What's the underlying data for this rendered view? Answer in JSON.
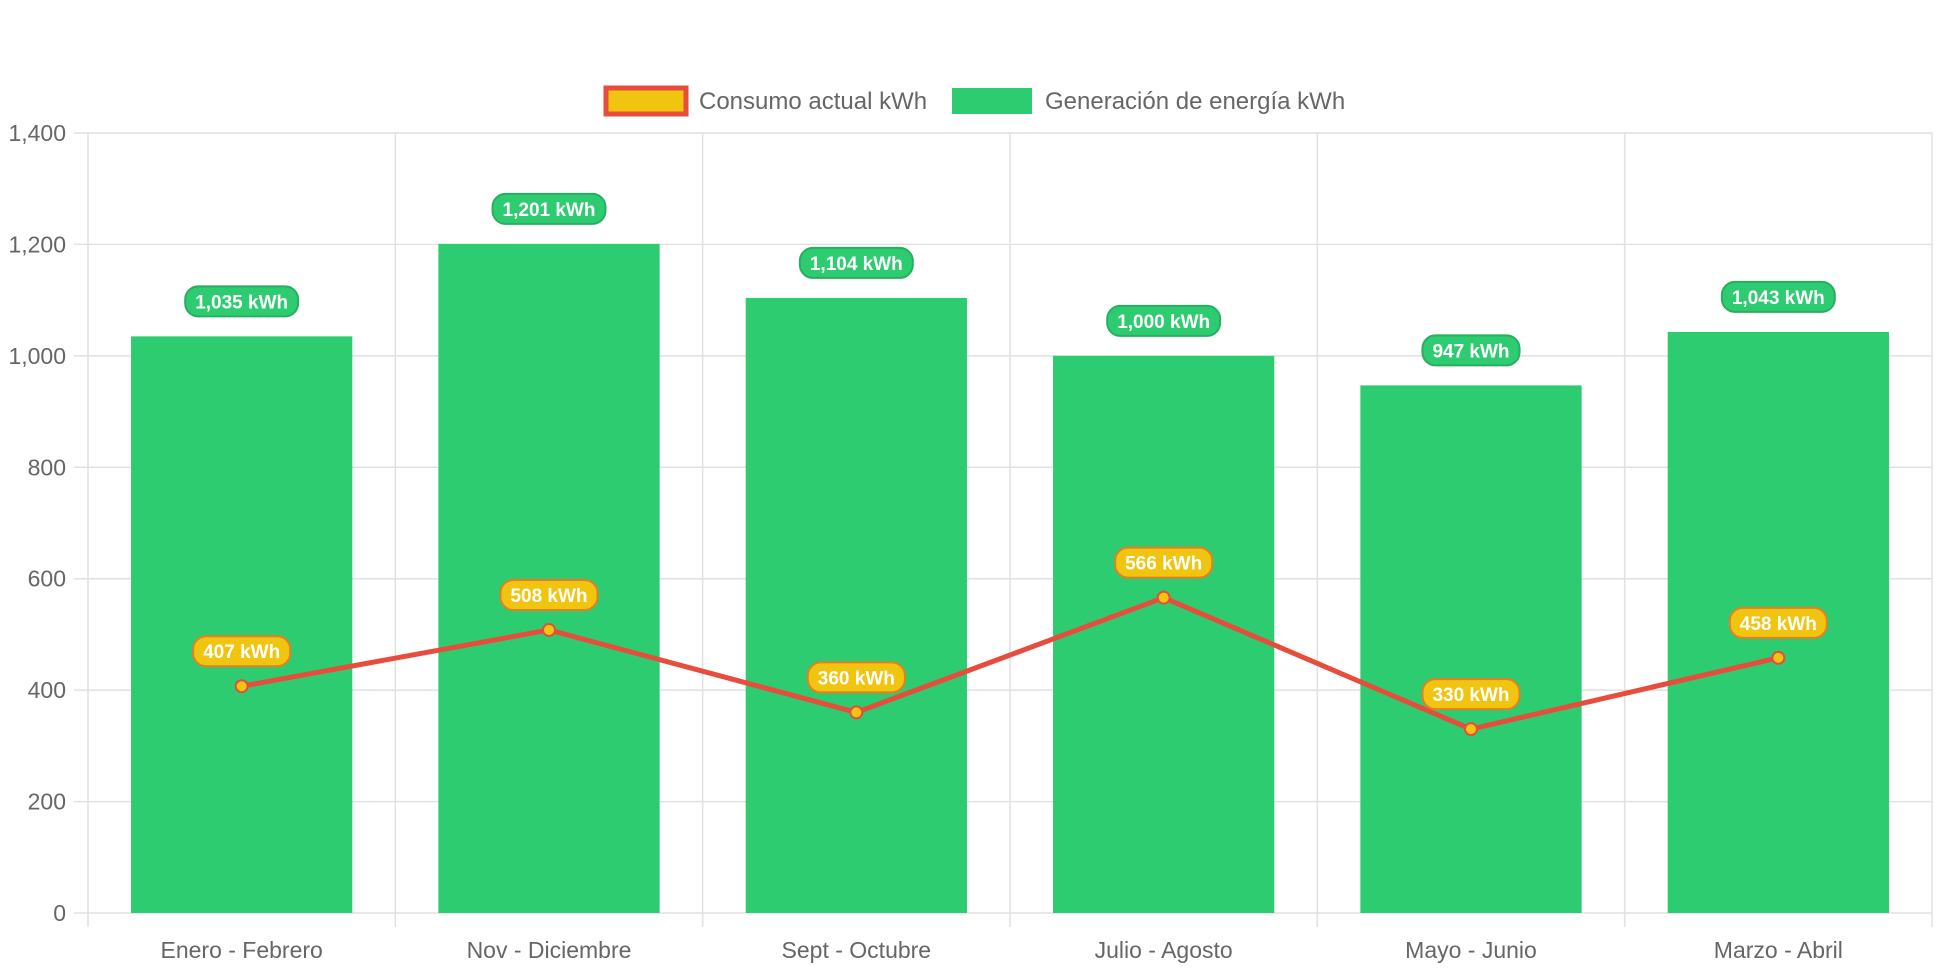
{
  "chart_data": {
    "type": "bar",
    "title": "",
    "xlabel": "",
    "ylabel": "",
    "categories": [
      "Enero - Febrero",
      "Nov - Diciembre",
      "Sept - Octubre",
      "Julio - Agosto",
      "Mayo - Junio",
      "Marzo - Abril"
    ],
    "ylim": [
      0,
      1400
    ],
    "y_ticks": [
      0,
      200,
      400,
      600,
      800,
      1000,
      1200,
      1400
    ],
    "y_tick_labels": [
      "0",
      "200",
      "400",
      "600",
      "800",
      "1,000",
      "1,200",
      "1,400"
    ],
    "grid": true,
    "legend_position": "top-center",
    "series": [
      {
        "name": "Consumo actual kWh",
        "type": "line",
        "color": "#e74c3c",
        "fill_color": "#f1c40f",
        "values": [
          407,
          508,
          360,
          566,
          330,
          458
        ],
        "data_labels": [
          "407 kWh",
          "508 kWh",
          "360 kWh",
          "566 kWh",
          "330 kWh",
          "458 kWh"
        ]
      },
      {
        "name": "Generación de energía kWh",
        "type": "bar",
        "color": "#2ecc71",
        "border_color": "#27ae60",
        "values": [
          1035,
          1201,
          1104,
          1000,
          947,
          1043
        ],
        "data_labels": [
          "1,035 kWh",
          "1,201 kWh",
          "1,104 kWh",
          "1,000 kWh",
          "947 kWh",
          "1,043 kWh"
        ]
      }
    ]
  }
}
